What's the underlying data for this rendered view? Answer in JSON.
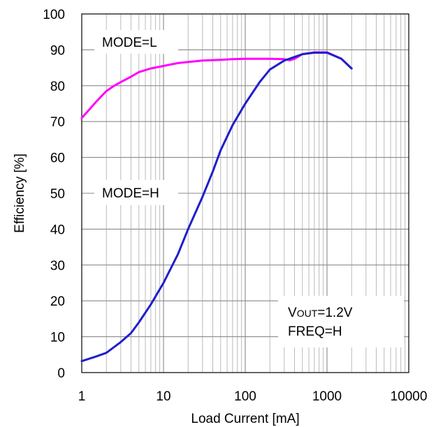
{
  "chart_data": {
    "type": "line",
    "xlabel": "Load Current [mA]",
    "ylabel": "Efficiency [%]",
    "x_scale": "log",
    "xlim": [
      1,
      10000
    ],
    "ylim": [
      0,
      100
    ],
    "x_ticks": [
      1,
      10,
      100,
      1000,
      10000
    ],
    "x_tick_labels": [
      "1",
      "10",
      "100",
      "1000",
      "10000"
    ],
    "y_ticks": [
      0,
      10,
      20,
      30,
      40,
      50,
      60,
      70,
      80,
      90,
      100
    ],
    "y_tick_labels": [
      "0",
      "10",
      "20",
      "30",
      "40",
      "50",
      "60",
      "70",
      "80",
      "90",
      "100"
    ],
    "grid": true,
    "series": [
      {
        "name": "MODE=L",
        "color": "#ff00ff",
        "x": [
          1,
          1.5,
          2,
          2.5,
          3,
          4,
          5,
          7,
          10,
          15,
          20,
          30,
          50,
          70,
          100,
          200,
          300,
          350,
          400,
          500,
          700,
          1000,
          1500,
          2000
        ],
        "y": [
          71,
          75.5,
          78.5,
          80,
          81,
          82.5,
          83.8,
          84.8,
          85.5,
          86.3,
          86.6,
          87,
          87.2,
          87.4,
          87.5,
          87.5,
          87.4,
          87.1,
          87.5,
          88.8,
          89.3,
          89.3,
          87.5,
          84.8
        ]
      },
      {
        "name": "MODE=H",
        "color": "#1f1fcc",
        "x": [
          1,
          1.5,
          2,
          3,
          4,
          5,
          7,
          10,
          15,
          20,
          30,
          40,
          50,
          70,
          100,
          150,
          200,
          300,
          400,
          500,
          700,
          1000,
          1500,
          2000
        ],
        "y": [
          3.2,
          4.5,
          5.5,
          8.5,
          11,
          14,
          19,
          25,
          33,
          40,
          49,
          56,
          62,
          69,
          75,
          81,
          84.5,
          87,
          88,
          88.8,
          89.2,
          89.2,
          87.5,
          84.8
        ]
      }
    ],
    "annotations": {
      "mode_l": "MODE=L",
      "mode_h": "MODE=H",
      "vout_prefix": "V",
      "vout_subscript": "OUT",
      "vout_value": "=1.2V",
      "freq": "FREQ=H"
    }
  }
}
